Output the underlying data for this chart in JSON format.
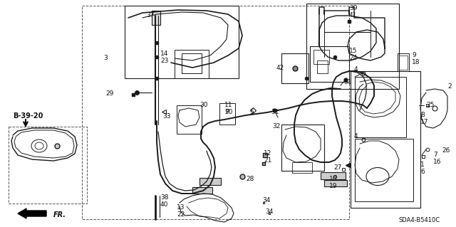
{
  "bg_color": "#ffffff",
  "fig_width": 6.4,
  "fig_height": 3.19,
  "dpi": 100,
  "diagram_code": "SDA4-B5410C",
  "line_color": "#1a1a1a",
  "text_color": "#111111"
}
